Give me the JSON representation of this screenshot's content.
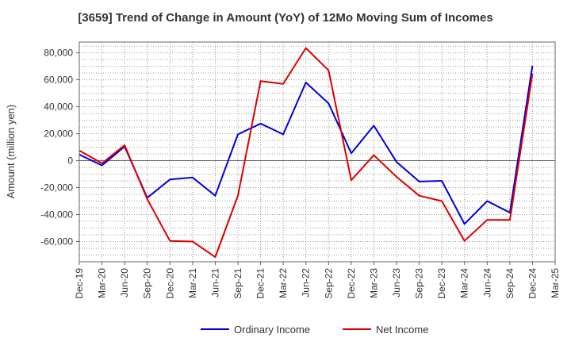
{
  "chart_data": {
    "type": "line",
    "title": "[3659]  Trend of Change in Amount (YoY) of 12Mo Moving Sum of Incomes",
    "xlabel": "",
    "ylabel": "Amount (million yen)",
    "ylim": [
      -75000,
      88000
    ],
    "yticks": [
      80000,
      60000,
      40000,
      20000,
      0,
      -20000,
      -40000,
      -60000
    ],
    "ytick_labels": [
      "80,000",
      "60,000",
      "40,000",
      "20,000",
      "0",
      "-20,000",
      "-40,000",
      "-60,000"
    ],
    "categories": [
      "Dec-19",
      "Mar-20",
      "Jun-20",
      "Sep-20",
      "Dec-20",
      "Mar-21",
      "Jun-21",
      "Sep-21",
      "Dec-21",
      "Mar-22",
      "Jun-22",
      "Sep-22",
      "Dec-22",
      "Mar-23",
      "Jun-23",
      "Sep-23",
      "Dec-23",
      "Mar-24",
      "Jun-24",
      "Sep-24",
      "Dec-24",
      "Mar-25"
    ],
    "grid": true,
    "legend_position": "bottom",
    "series": [
      {
        "name": "Ordinary Income",
        "color": "#0000dd",
        "values": [
          4500,
          -3500,
          10500,
          -27500,
          -14000,
          -12500,
          -26000,
          19500,
          27500,
          19500,
          58000,
          42500,
          5500,
          26000,
          -1000,
          -15500,
          -15000,
          -47000,
          -30000,
          -38500,
          70500,
          null
        ]
      },
      {
        "name": "Net Income",
        "color": "#dd0000",
        "values": [
          7500,
          -2000,
          11500,
          -28500,
          -59500,
          -60000,
          -71500,
          -26000,
          59000,
          57000,
          83500,
          67000,
          -14500,
          4000,
          -12000,
          -26000,
          -30000,
          -59500,
          -44000,
          -44000,
          64500,
          null
        ]
      }
    ]
  }
}
